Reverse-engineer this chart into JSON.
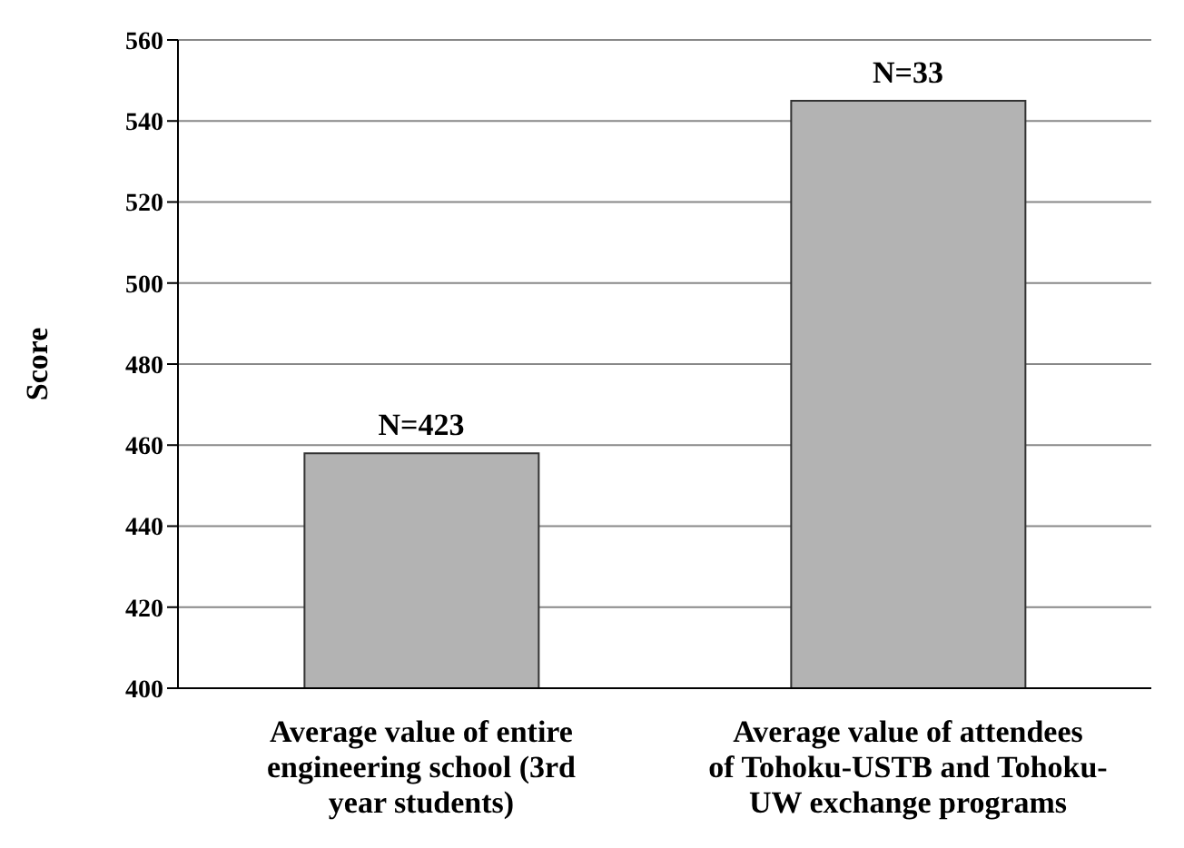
{
  "chart_data": {
    "type": "bar",
    "ylabel": "Score",
    "categories": [
      "Average value of entire engineering school (3rd year students)",
      "Average value of attendees of Tohoku-USTB and Tohoku-UW exchange programs"
    ],
    "values": [
      458,
      545
    ],
    "color": "#b3b3b3",
    "ylim": [
      400,
      560
    ],
    "yticks": [
      400,
      420,
      440,
      460,
      480,
      500,
      520,
      540,
      560
    ],
    "grid": "y",
    "annotations": [
      {
        "text": "N=423",
        "x": "Average value of entire engineering school (3rd year students)",
        "y": 458
      },
      {
        "text": "N=33",
        "x": "Average value of attendees of Tohoku-USTB and Tohoku-UW exchange programs",
        "y": 545
      }
    ]
  }
}
